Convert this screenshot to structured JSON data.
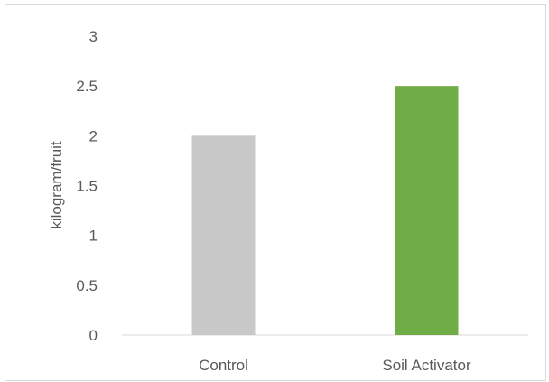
{
  "chart_data": {
    "type": "bar",
    "categories": [
      "Control",
      "Soil Activator"
    ],
    "values": [
      2,
      2.5
    ],
    "colors": [
      "#c8c8c8",
      "#70ad47"
    ],
    "title": "",
    "xlabel": "",
    "ylabel": "kilogram/fruit",
    "ylim": [
      0,
      3
    ],
    "yticks": [
      "0",
      "0.5",
      "1",
      "1.5",
      "2",
      "2.5",
      "3"
    ],
    "grid": false,
    "legend": "none"
  }
}
